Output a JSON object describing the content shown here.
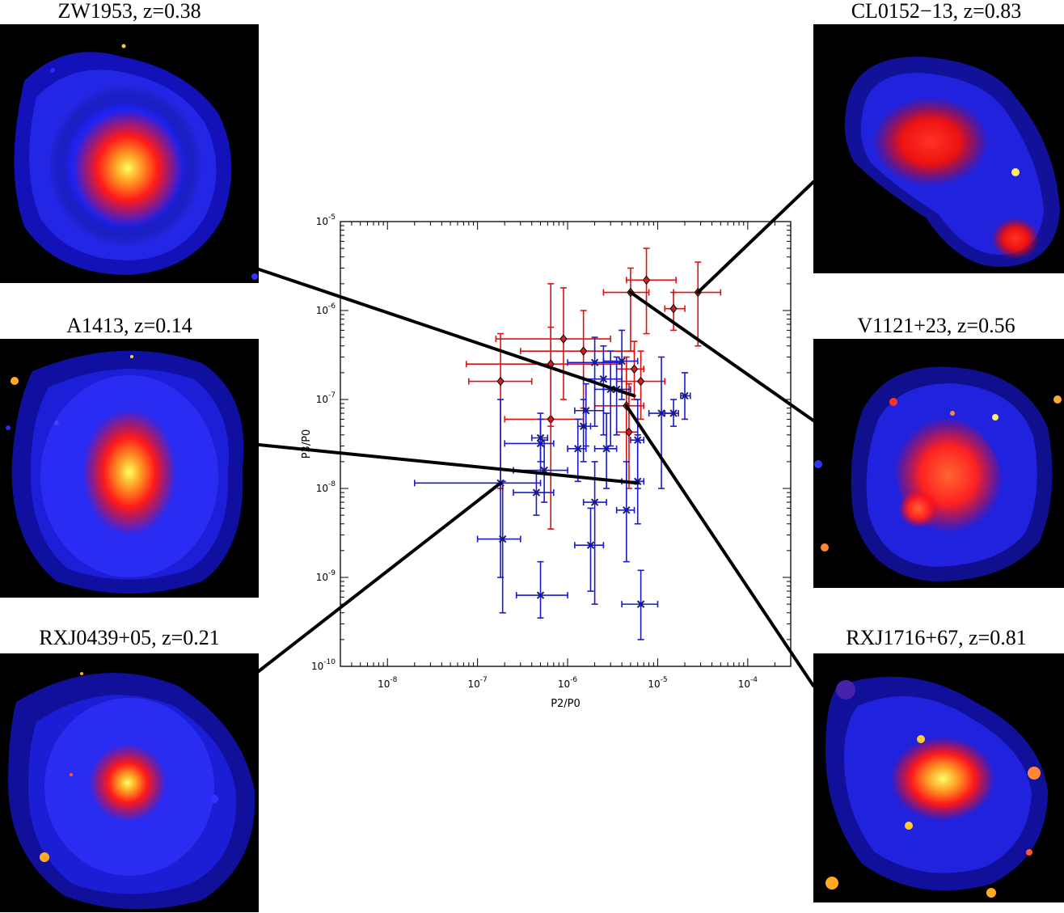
{
  "panels": [
    {
      "id": "zw1953",
      "label": "ZW1953, z=0.38"
    },
    {
      "id": "a1413",
      "label": "A1413, z=0.14"
    },
    {
      "id": "rxj0439",
      "label": "RXJ0439+05, z=0.21"
    },
    {
      "id": "cl0152",
      "label": "CL0152−13, z=0.83"
    },
    {
      "id": "v1121",
      "label": "V1121+23, z=0.56"
    },
    {
      "id": "rxj1716",
      "label": "RXJ1716+67, z=0.81"
    }
  ],
  "colors": {
    "red_series": "#dd1111",
    "blue_series": "#1a1acc",
    "marker_fill_red": "#cc2222",
    "connector": "#000000"
  },
  "chart_data": {
    "type": "scatter",
    "title": "",
    "xlabel": "P2/P0",
    "ylabel": "P3/P0",
    "xscale": "log",
    "yscale": "log",
    "xlim": [
      3e-09,
      0.0003
    ],
    "ylim": [
      1e-10,
      1e-05
    ],
    "xticks": [
      1e-08,
      1e-07,
      1e-06,
      1e-05,
      0.0001
    ],
    "yticks": [
      1e-10,
      1e-09,
      1e-08,
      1e-07,
      1e-06,
      1e-05
    ],
    "xtick_labels": [
      [
        "10",
        "-8"
      ],
      [
        "10",
        "-7"
      ],
      [
        "10",
        "-6"
      ],
      [
        "10",
        "-5"
      ],
      [
        "10",
        "-4"
      ]
    ],
    "ytick_labels": [
      [
        "10",
        "-10"
      ],
      [
        "10",
        "-9"
      ],
      [
        "10",
        "-8"
      ],
      [
        "10",
        "-7"
      ],
      [
        "10",
        "-6"
      ],
      [
        "10",
        "-5"
      ]
    ],
    "grid": false,
    "series": [
      {
        "marker": "diamond",
        "color": "#dd1111",
        "points": [
          {
            "x": 1.8e-07,
            "y": 1.6e-07,
            "xlo": 8e-08,
            "xhi": 4e-07,
            "ylo": 1e-08,
            "yhi": 5.5e-07
          },
          {
            "x": 6.5e-07,
            "y": 6e-08,
            "xlo": 2e-07,
            "xhi": 1.5e-06,
            "ylo": 3.5e-09,
            "yhi": 2e-06
          },
          {
            "x": 9e-07,
            "y": 4.8e-07,
            "xlo": 1.6e-07,
            "xhi": 3e-06,
            "ylo": 1e-07,
            "yhi": 1.8e-06
          },
          {
            "x": 6.5e-07,
            "y": 2.5e-07,
            "xlo": 7.5e-08,
            "xhi": 4e-06,
            "ylo": 5e-08,
            "yhi": 6.5e-07
          },
          {
            "x": 1.5e-06,
            "y": 3.5e-07,
            "xlo": 3e-07,
            "xhi": 5.5e-06,
            "ylo": 8e-08,
            "yhi": 1e-06
          },
          {
            "x": 4.5e-06,
            "y": 8.5e-08,
            "xlo": 2e-06,
            "xhi": 7e-06,
            "ylo": 1.2e-08,
            "yhi": 3e-07
          },
          {
            "x": 4.8e-06,
            "y": 4.3e-08,
            "xlo": 3.5e-06,
            "xhi": 6e-06,
            "ylo": 1e-08,
            "yhi": 1.5e-07
          },
          {
            "x": 5.5e-06,
            "y": 2.2e-07,
            "xlo": 3.5e-06,
            "xhi": 7e-06,
            "ylo": 1e-07,
            "yhi": 4.5e-07
          },
          {
            "x": 6.5e-06,
            "y": 1.6e-07,
            "xlo": 3.5e-06,
            "xhi": 1.2e-05,
            "ylo": 6e-08,
            "yhi": 3.5e-07
          },
          {
            "x": 5e-06,
            "y": 1.6e-06,
            "xlo": 2.5e-06,
            "xhi": 8e-06,
            "ylo": 3.5e-07,
            "yhi": 3e-06
          },
          {
            "x": 7.5e-06,
            "y": 2.2e-06,
            "xlo": 4.5e-06,
            "xhi": 1.6e-05,
            "ylo": 5.5e-07,
            "yhi": 5e-06
          },
          {
            "x": 1.5e-05,
            "y": 1.05e-06,
            "xlo": 1.2e-05,
            "xhi": 2e-05,
            "ylo": 6e-07,
            "yhi": 1.6e-06
          },
          {
            "x": 2.8e-05,
            "y": 1.6e-06,
            "xlo": 1.5e-05,
            "xhi": 5e-05,
            "ylo": 4e-07,
            "yhi": 3.5e-06
          }
        ]
      },
      {
        "marker": "x",
        "color": "#1a1acc",
        "points": [
          {
            "x": 1.8e-07,
            "y": 1.15e-08,
            "xlo": 2e-08,
            "xhi": 5e-07,
            "ylo": 1e-09,
            "yhi": 1e-07
          },
          {
            "x": 1.9e-07,
            "y": 2.7e-09,
            "xlo": 1e-07,
            "xhi": 3e-07,
            "ylo": 4e-10,
            "yhi": 1.2e-08
          },
          {
            "x": 5e-07,
            "y": 3.2e-08,
            "xlo": 2e-07,
            "xhi": 7e-07,
            "ylo": 1.5e-08,
            "yhi": 6e-08
          },
          {
            "x": 5e-07,
            "y": 6.3e-10,
            "xlo": 2.7e-07,
            "xhi": 1e-06,
            "ylo": 3.5e-10,
            "yhi": 1.5e-09
          },
          {
            "x": 4.5e-07,
            "y": 9e-09,
            "xlo": 2.5e-07,
            "xhi": 7e-07,
            "ylo": 5e-09,
            "yhi": 1.5e-08
          },
          {
            "x": 5.5e-07,
            "y": 1.6e-08,
            "xlo": 2.5e-07,
            "xhi": 1e-06,
            "ylo": 7e-09,
            "yhi": 3.5e-08
          },
          {
            "x": 5e-07,
            "y": 3.7e-08,
            "xlo": 4e-07,
            "xhi": 6e-07,
            "ylo": 2e-08,
            "yhi": 7e-08
          },
          {
            "x": 1.3e-06,
            "y": 2.8e-08,
            "xlo": 1e-06,
            "xhi": 1.6e-06,
            "ylo": 1.2e-08,
            "yhi": 6e-08
          },
          {
            "x": 1.5e-06,
            "y": 5e-08,
            "xlo": 1.3e-06,
            "xhi": 1.8e-06,
            "ylo": 2e-08,
            "yhi": 1e-07
          },
          {
            "x": 1.6e-06,
            "y": 7.5e-08,
            "xlo": 1.2e-06,
            "xhi": 2.5e-06,
            "ylo": 3e-08,
            "yhi": 1.5e-07
          },
          {
            "x": 1.8e-06,
            "y": 2.3e-09,
            "xlo": 1.2e-06,
            "xhi": 2.5e-06,
            "ylo": 7e-10,
            "yhi": 6e-09
          },
          {
            "x": 2e-06,
            "y": 7e-09,
            "xlo": 1.5e-06,
            "xhi": 2.7e-06,
            "ylo": 5e-10,
            "yhi": 2e-08
          },
          {
            "x": 2e-06,
            "y": 2.6e-07,
            "xlo": 1e-06,
            "xhi": 4e-06,
            "ylo": 5e-08,
            "yhi": 5e-07
          },
          {
            "x": 2.5e-06,
            "y": 1.7e-07,
            "xlo": 1.5e-06,
            "xhi": 4e-06,
            "ylo": 4e-08,
            "yhi": 4e-07
          },
          {
            "x": 2.7e-06,
            "y": 2.8e-08,
            "xlo": 2e-06,
            "xhi": 3.5e-06,
            "ylo": 1e-08,
            "yhi": 7e-08
          },
          {
            "x": 3e-06,
            "y": 1.3e-07,
            "xlo": 2e-06,
            "xhi": 4e-06,
            "ylo": 3e-08,
            "yhi": 3.5e-07
          },
          {
            "x": 3.5e-06,
            "y": 1.3e-07,
            "xlo": 2.5e-06,
            "xhi": 5e-06,
            "ylo": 4e-08,
            "yhi": 3e-07
          },
          {
            "x": 4e-06,
            "y": 2.7e-07,
            "xlo": 2.5e-06,
            "xhi": 6e-06,
            "ylo": 1e-07,
            "yhi": 6e-07
          },
          {
            "x": 4.5e-06,
            "y": 5.7e-09,
            "xlo": 3.5e-06,
            "xhi": 5.5e-06,
            "ylo": 1.5e-09,
            "yhi": 2e-08
          },
          {
            "x": 6e-06,
            "y": 3.5e-08,
            "xlo": 5e-06,
            "xhi": 7e-06,
            "ylo": 1e-08,
            "yhi": 1e-07
          },
          {
            "x": 6e-06,
            "y": 1.2e-08,
            "xlo": 4e-06,
            "xhi": 7e-06,
            "ylo": 4e-09,
            "yhi": 4e-08
          },
          {
            "x": 6.5e-06,
            "y": 5e-10,
            "xlo": 4e-06,
            "xhi": 1e-05,
            "ylo": 2e-10,
            "yhi": 1.2e-09
          },
          {
            "x": 1.1e-05,
            "y": 7e-08,
            "xlo": 8e-06,
            "xhi": 1.5e-05,
            "ylo": 1e-08,
            "yhi": 3e-07
          },
          {
            "x": 1.5e-05,
            "y": 7e-08,
            "xlo": 1.2e-05,
            "xhi": 1.7e-05,
            "ylo": 5e-08,
            "yhi": 1e-07
          },
          {
            "x": 2e-05,
            "y": 1.1e-07,
            "xlo": 1.8e-05,
            "xhi": 2.3e-05,
            "ylo": 6e-08,
            "yhi": 2e-07
          }
        ]
      }
    ],
    "connectors": [
      {
        "panel": "zw1953",
        "x": 5.5e-06,
        "y": 1.1e-07
      },
      {
        "panel": "a1413",
        "x": 6e-06,
        "y": 1.15e-08
      },
      {
        "panel": "rxj0439",
        "x": 1.8e-07,
        "y": 1.15e-08
      },
      {
        "panel": "cl0152",
        "x": 2.8e-05,
        "y": 1.6e-06
      },
      {
        "panel": "v1121",
        "x": 5e-06,
        "y": 1.6e-06
      },
      {
        "panel": "rxj1716",
        "x": 4.5e-06,
        "y": 8.5e-08
      }
    ]
  }
}
